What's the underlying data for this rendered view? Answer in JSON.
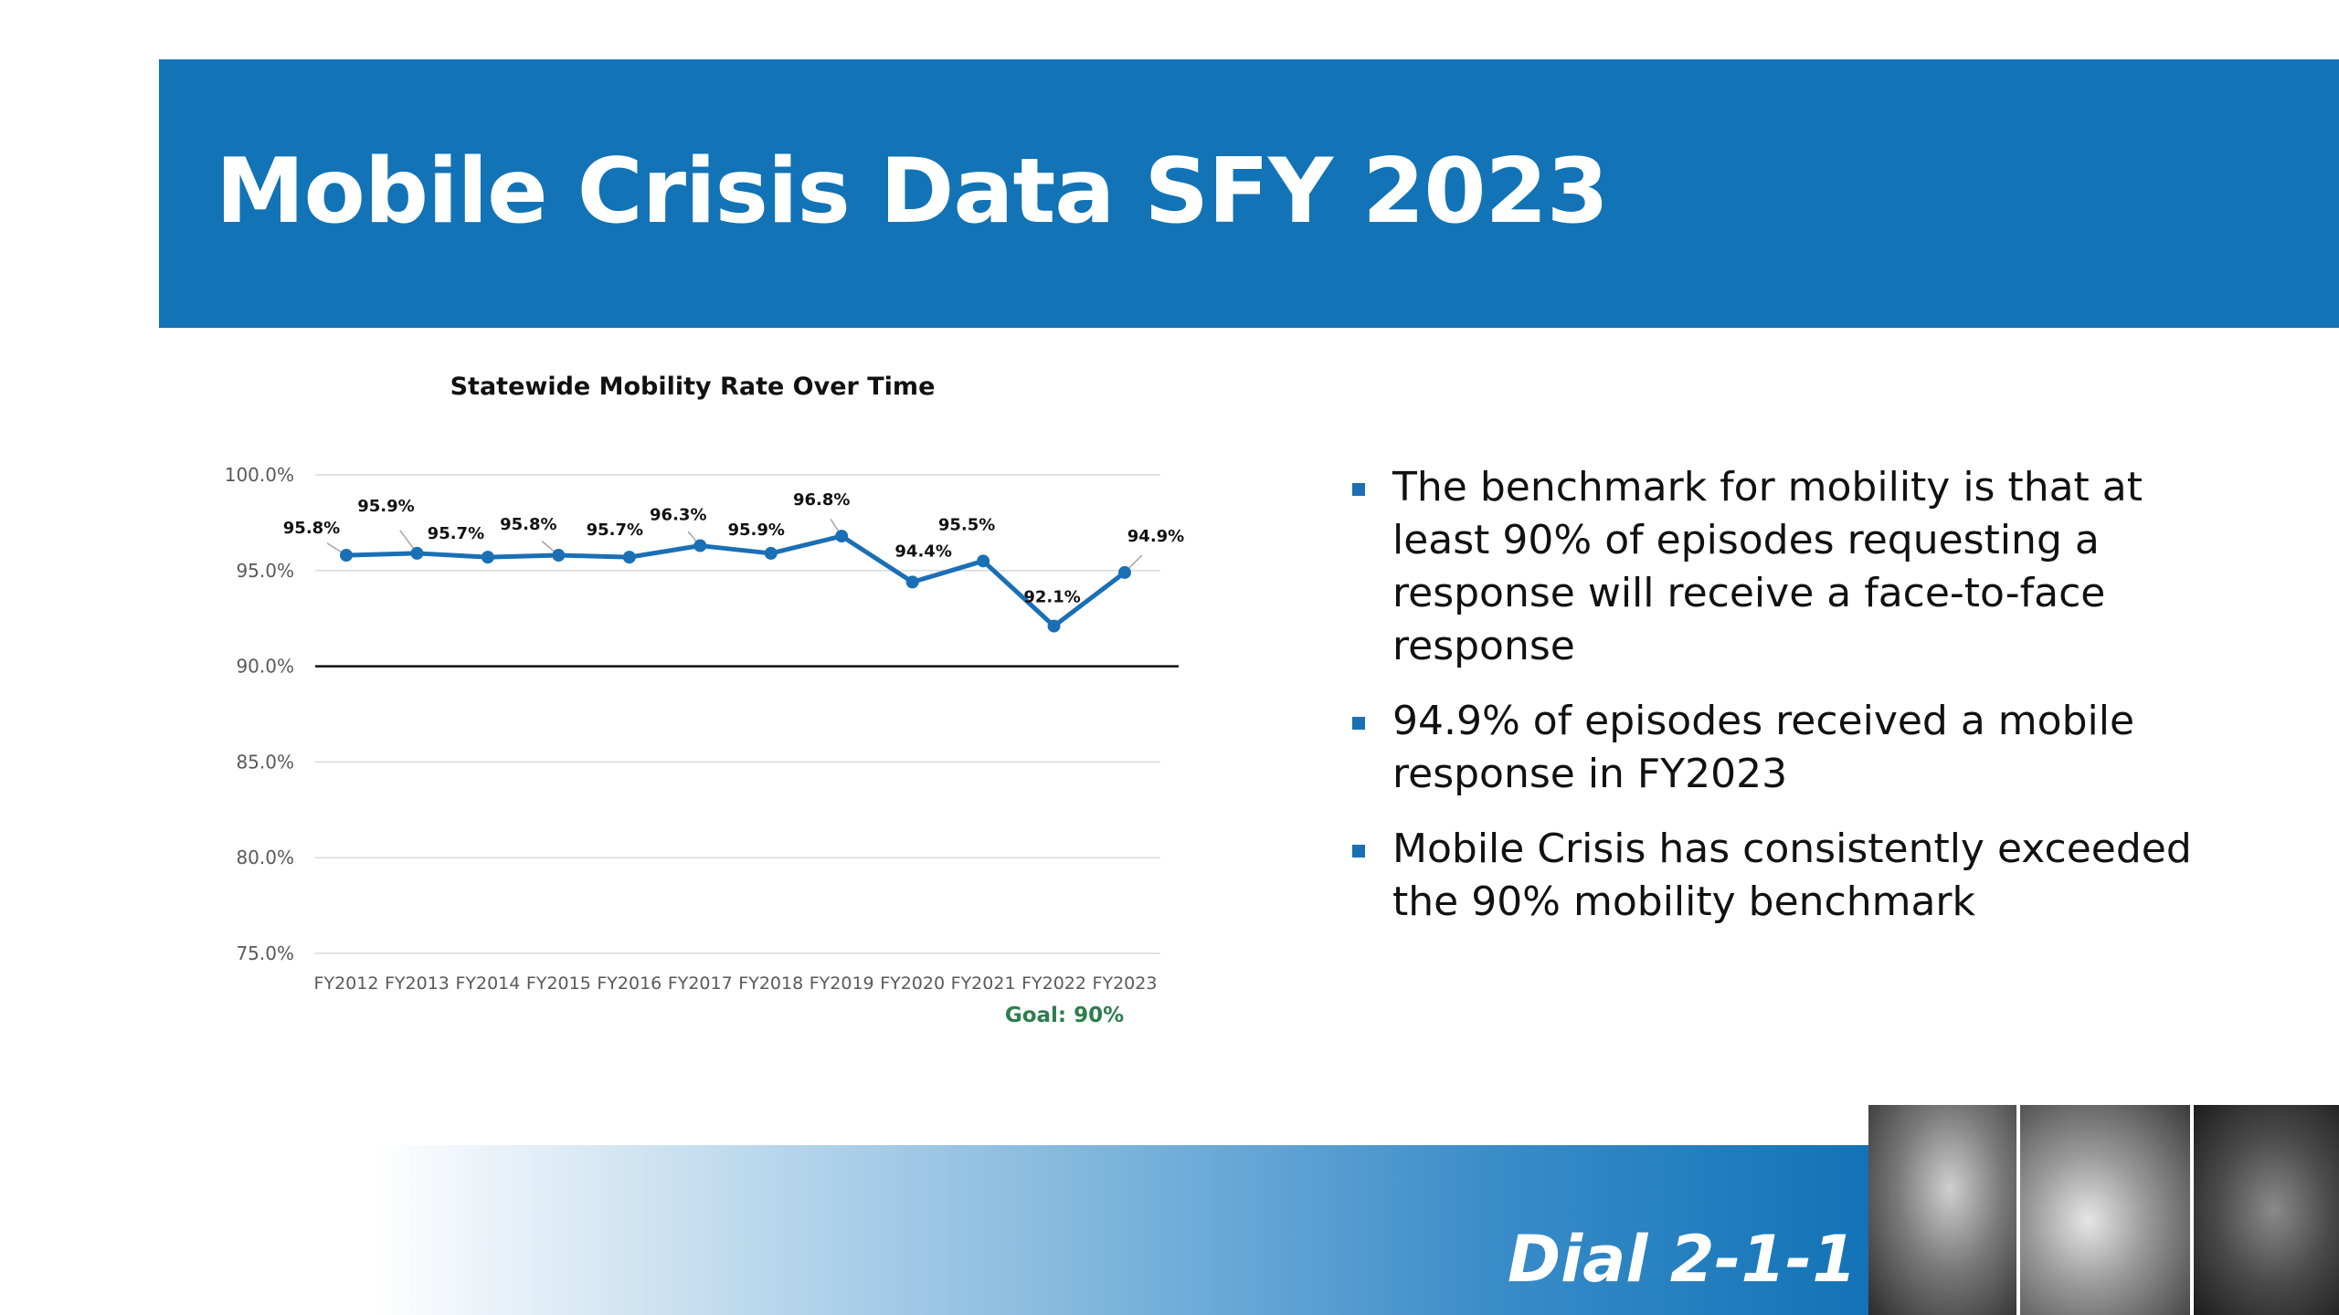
{
  "slide": {
    "title": "Mobile Crisis Data SFY 2023",
    "footer_text": "Dial 2-1-1",
    "bullets": [
      "The benchmark for mobility is that at least 90% of episodes requesting a response will receive a face-to-face response",
      "94.9% of episodes received a mobile response in FY2023",
      "Mobile Crisis has consistently exceeded the 90% mobility benchmark"
    ],
    "photos": [
      "teen-with-hand-on-head",
      "girl-looking-down",
      "boy-worried-face"
    ]
  },
  "colors": {
    "banner": "#1273b6",
    "line": "#1a6fb5",
    "goal_label": "#2e7d4f",
    "bullet": "#1a6fb5"
  },
  "chart_data": {
    "type": "line",
    "title": "Statewide Mobility Rate Over Time",
    "categories": [
      "FY2012",
      "FY2013",
      "FY2014",
      "FY2015",
      "FY2016",
      "FY2017",
      "FY2018",
      "FY2019",
      "FY2020",
      "FY2021",
      "FY2022",
      "FY2023"
    ],
    "series": [
      {
        "values": [
          95.8,
          95.9,
          95.7,
          95.8,
          95.7,
          96.3,
          95.9,
          96.8,
          94.4,
          95.5,
          92.1,
          94.9
        ],
        "labels": [
          "95.8%",
          "95.9%",
          "95.7%",
          "95.8%",
          "95.7%",
          "96.3%",
          "95.9%",
          "96.8%",
          "94.4%",
          "95.5%",
          "92.1%",
          "94.9%"
        ]
      }
    ],
    "yticks": [
      "75.0%",
      "80.0%",
      "85.0%",
      "90.0%",
      "95.0%",
      "100.0%"
    ],
    "ylim": [
      75,
      100
    ],
    "goal": {
      "value": 90,
      "label": "Goal: 90%"
    },
    "grid": true,
    "legend": "none"
  }
}
